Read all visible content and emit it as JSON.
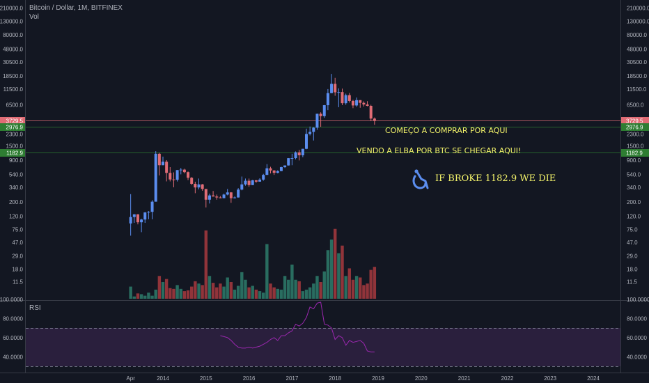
{
  "header": {
    "symbol_line": "Bitcoin / Dollar, 1M, BITFINEX",
    "volume_label": "Vol",
    "rsi_label": "RSI"
  },
  "colors": {
    "background": "#131722",
    "up": "#5b8def",
    "down": "#e06c75",
    "vol_up": "#2e7d6b",
    "vol_down": "#a83a3e",
    "rsi_line": "#9c27b0",
    "rsi_band": "#2a1f3d",
    "annotation": "#f5f56b",
    "level_red": "#e06c75",
    "level_green": "#2e7d32"
  },
  "annotations": {
    "buy_text": "COMEÇO A COMPRAR POR AQUI",
    "sell_text": "VENDO A ELBA POR BTC SE CHEGAR AQUI!",
    "die_text": "IF BROKE 1182.9 WE DIE",
    "die_icon": "wheelchair-fall-icon"
  },
  "chart_data": {
    "type": "candlestick",
    "title": "Bitcoin / Dollar, 1M, BITFINEX",
    "y_scale": "log",
    "price_ticks": [
      "210000.0",
      "130000.0",
      "80000.0",
      "48000.0",
      "30500.0",
      "18500.0",
      "11500.0",
      "6500.0",
      "3729.5",
      "2976.9",
      "2300.0",
      "1500.0",
      "900.0",
      "540.0",
      "340.0",
      "200.0",
      "120.0",
      "75.0",
      "47.0",
      "29.0",
      "18.0",
      "11.5"
    ],
    "rsi_ticks": [
      "100.0000",
      "80.0000",
      "60.0000",
      "40.0000"
    ],
    "x_ticks": [
      "Apr",
      "2014",
      "2015",
      "2016",
      "2017",
      "2018",
      "2019",
      "2020",
      "2021",
      "2022",
      "2023",
      "2024"
    ],
    "levels": [
      {
        "price": 3729.5,
        "label": "3729.5",
        "color": "red"
      },
      {
        "price": 2976.9,
        "label": "2976.9",
        "color": "green"
      },
      {
        "price": 1182.9,
        "label": "1182.9",
        "color": "green"
      }
    ],
    "rsi_band": [
      30,
      70
    ],
    "candles": {
      "months": [
        "2013-04",
        "2013-05",
        "2013-06",
        "2013-07",
        "2013-08",
        "2013-09",
        "2013-10",
        "2013-11",
        "2013-12",
        "2014-01",
        "2014-02",
        "2014-03",
        "2014-04",
        "2014-05",
        "2014-06",
        "2014-07",
        "2014-08",
        "2014-09",
        "2014-10",
        "2014-11",
        "2014-12",
        "2015-01",
        "2015-02",
        "2015-03",
        "2015-04",
        "2015-05",
        "2015-06",
        "2015-07",
        "2015-08",
        "2015-09",
        "2015-10",
        "2015-11",
        "2015-12",
        "2016-01",
        "2016-02",
        "2016-03",
        "2016-04",
        "2016-05",
        "2016-06",
        "2016-07",
        "2016-08",
        "2016-09",
        "2016-10",
        "2016-11",
        "2016-12",
        "2017-01",
        "2017-02",
        "2017-03",
        "2017-04",
        "2017-05",
        "2017-06",
        "2017-07",
        "2017-08",
        "2017-09",
        "2017-10",
        "2017-11",
        "2017-12",
        "2018-01",
        "2018-02",
        "2018-03",
        "2018-04",
        "2018-05",
        "2018-06",
        "2018-07",
        "2018-08",
        "2018-09",
        "2018-10",
        "2018-11",
        "2018-12"
      ],
      "open": [
        93,
        117,
        129,
        97,
        107,
        138,
        141,
        203,
        1130,
        750,
        850,
        570,
        450,
        445,
        630,
        640,
        585,
        478,
        385,
        338,
        377,
        320,
        218,
        254,
        244,
        236,
        230,
        262,
        283,
        230,
        236,
        313,
        377,
        430,
        368,
        437,
        416,
        448,
        530,
        672,
        621,
        571,
        608,
        700,
        744,
        966,
        968,
        1190,
        1071,
        1350,
        2300,
        2480,
        2880,
        4740,
        4360,
        6450,
        9940,
        13860,
        10230,
        10330,
        6930,
        9240,
        7510,
        6390,
        7730,
        7020,
        6620,
        6300,
        3990
      ],
      "high": [
        266,
        130,
        130,
        110,
        140,
        145,
        214,
        1240,
        1170,
        1020,
        900,
        700,
        580,
        630,
        680,
        660,
        600,
        490,
        415,
        465,
        383,
        320,
        270,
        298,
        262,
        248,
        270,
        320,
        286,
        245,
        330,
        500,
        465,
        465,
        443,
        440,
        470,
        550,
        780,
        710,
        630,
        625,
        710,
        745,
        970,
        1130,
        1230,
        1300,
        1350,
        2780,
        3000,
        2930,
        4760,
        5000,
        6500,
        11500,
        19800,
        17200,
        11800,
        11700,
        9750,
        10000,
        7800,
        8500,
        7730,
        7400,
        7450,
        6550,
        4150
      ],
      "low": [
        60,
        95,
        90,
        68,
        95,
        108,
        108,
        203,
        520,
        750,
        420,
        420,
        340,
        418,
        540,
        560,
        440,
        370,
        275,
        315,
        300,
        165,
        190,
        245,
        218,
        230,
        230,
        255,
        195,
        228,
        235,
        305,
        360,
        345,
        368,
        400,
        415,
        430,
        530,
        560,
        530,
        560,
        605,
        680,
        740,
        750,
        925,
        890,
        1000,
        1330,
        2180,
        1820,
        2670,
        2980,
        4100,
        5400,
        9900,
        9040,
        6000,
        6460,
        6550,
        7080,
        5800,
        6100,
        5880,
        6150,
        6200,
        3650,
        3200
      ],
      "close": [
        117,
        129,
        97,
        107,
        138,
        141,
        203,
        1130,
        750,
        850,
        570,
        450,
        445,
        630,
        640,
        585,
        478,
        385,
        338,
        377,
        320,
        218,
        254,
        244,
        236,
        230,
        262,
        283,
        230,
        236,
        313,
        377,
        430,
        368,
        437,
        416,
        448,
        530,
        672,
        621,
        571,
        608,
        700,
        744,
        966,
        968,
        1190,
        1071,
        1350,
        2300,
        2480,
        2880,
        4740,
        4360,
        6450,
        9940,
        13860,
        10230,
        10330,
        6930,
        9240,
        7510,
        6390,
        7730,
        7020,
        6620,
        6300,
        3990,
        3729.5
      ]
    },
    "volume_scale_max": 100,
    "volume": [
      16,
      3,
      7,
      6,
      4,
      8,
      4,
      12,
      30,
      22,
      26,
      14,
      13,
      18,
      13,
      10,
      11,
      16,
      23,
      20,
      18,
      90,
      30,
      21,
      15,
      20,
      16,
      28,
      22,
      12,
      17,
      35,
      25,
      15,
      17,
      12,
      10,
      8,
      72,
      20,
      15,
      13,
      12,
      30,
      25,
      45,
      25,
      23,
      10,
      12,
      15,
      20,
      30,
      22,
      36,
      64,
      78,
      92,
      60,
      70,
      30,
      40,
      25,
      30,
      28,
      18,
      20,
      38,
      42
    ],
    "rsi": [
      62,
      61,
      60,
      57,
      53,
      50,
      49,
      49,
      50,
      49,
      50,
      51,
      53,
      55,
      58,
      60,
      57,
      62,
      62,
      65,
      67,
      74,
      72,
      75,
      81,
      92,
      90,
      96,
      97,
      74,
      73,
      70,
      58,
      62,
      60,
      52,
      57,
      55,
      56,
      57,
      54,
      46,
      45,
      45
    ]
  }
}
